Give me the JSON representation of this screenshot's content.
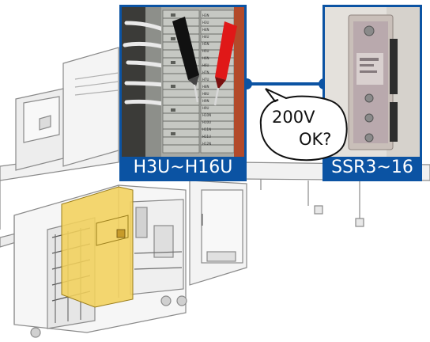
{
  "captions": {
    "left": "H3U~H16U",
    "right": "SSR3~16"
  },
  "bubble": {
    "line1": "200V",
    "line2": "OK?"
  },
  "terminal_labels": [
    "H3N",
    "H3U",
    "H4N",
    "H4U",
    "H5N",
    "H5U",
    "H6N",
    "H6U",
    "H7N",
    "H7U",
    "H8N",
    "H8U",
    "H9N",
    "H9U",
    "H10N",
    "H10U",
    "H11N",
    "H11U",
    "H12N"
  ],
  "colors": {
    "frame_blue": "#0b53a3",
    "highlight_yellow": "#f3d25c",
    "probe_red": "#e01818",
    "probe_black": "#111111",
    "line_art": "#7a7a7a"
  },
  "icons": [
    "tester-probe-black",
    "tester-probe-red",
    "solid-state-relay",
    "terminal-block"
  ]
}
